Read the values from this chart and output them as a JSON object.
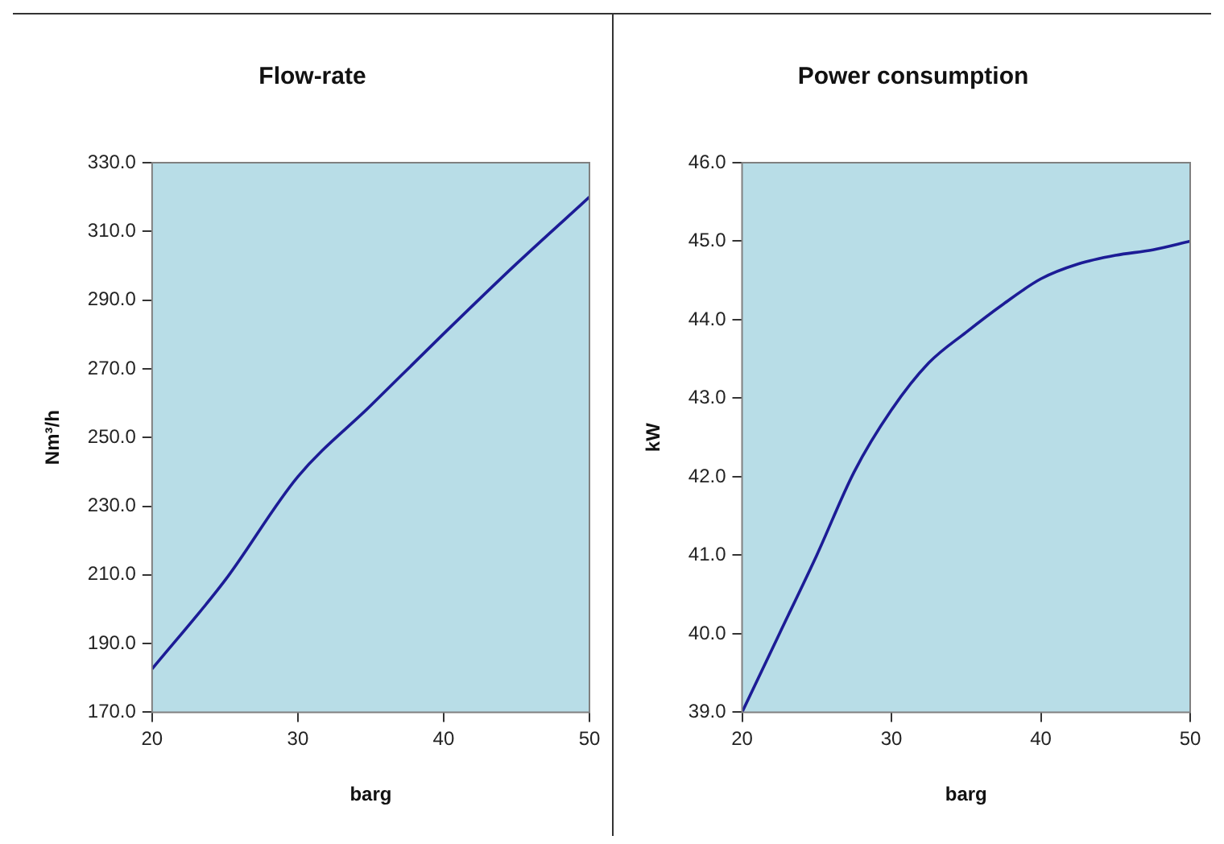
{
  "chart_data": [
    {
      "type": "line",
      "title": "Flow-rate",
      "xlabel": "barg",
      "ylabel": "Nm³/h",
      "series": [
        {
          "color": "#1c1c96",
          "x": [
            20,
            25,
            30,
            35,
            40,
            45,
            50
          ],
          "values": [
            182.6,
            208.4,
            238.6,
            259.3,
            280.2,
            300.6,
            320
          ]
        }
      ],
      "xlim": [
        20,
        50
      ],
      "xticks": [
        20,
        30,
        40,
        50
      ],
      "ylim": [
        170,
        330
      ],
      "yticks": [
        {
          "value": 170,
          "label": "170.0"
        },
        {
          "value": 190,
          "label": "190.0"
        },
        {
          "value": 210,
          "label": "210.0"
        },
        {
          "value": 230,
          "label": "230.0"
        },
        {
          "value": 250,
          "label": "250.0"
        },
        {
          "value": 270,
          "label": "270.0"
        },
        {
          "value": 290,
          "label": "290.0"
        },
        {
          "value": 310,
          "label": "310.0"
        },
        {
          "value": 330,
          "label": "330.0"
        }
      ],
      "legend": false,
      "marker": "none"
    },
    {
      "type": "line",
      "title": "Power consumption",
      "xlabel": "barg",
      "ylabel": "kW",
      "series": [
        {
          "color": "#1c1c96",
          "x": [
            20,
            22.5,
            25,
            27.5,
            30,
            32.5,
            35,
            37.5,
            40,
            42.5,
            45,
            47.5,
            50
          ],
          "values": [
            39.0,
            40.0,
            41.0,
            42.06,
            42.85,
            43.45,
            43.84,
            44.2,
            44.52,
            44.71,
            44.82,
            44.89,
            45.0
          ]
        }
      ],
      "xlim": [
        20,
        50
      ],
      "xticks": [
        20,
        30,
        40,
        50
      ],
      "ylim": [
        39,
        46
      ],
      "yticks": [
        {
          "value": 39,
          "label": "39.0"
        },
        {
          "value": 40,
          "label": "40.0"
        },
        {
          "value": 41,
          "label": "41.0"
        },
        {
          "value": 42,
          "label": "42.0"
        },
        {
          "value": 43,
          "label": "43.0"
        },
        {
          "value": 44,
          "label": "44.0"
        },
        {
          "value": 45,
          "label": "45.0"
        },
        {
          "value": 46,
          "label": "46.0"
        }
      ],
      "legend": false,
      "marker": "none"
    }
  ]
}
